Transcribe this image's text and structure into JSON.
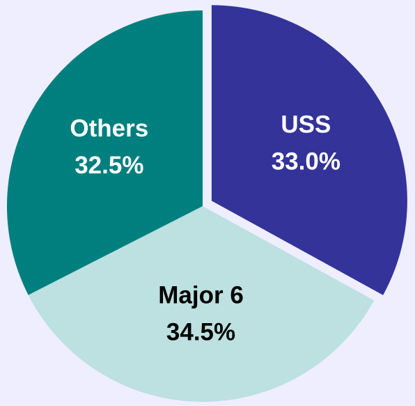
{
  "chart_data": {
    "type": "pie",
    "categories": [
      "USS",
      "Major 6",
      "Others"
    ],
    "values": [
      33.0,
      34.5,
      32.5
    ],
    "value_labels": [
      "33.0%",
      "34.5%",
      "32.5%"
    ],
    "colors": [
      "#333399",
      "#bde0e0",
      "#007f7f"
    ],
    "exploded": [
      true,
      false,
      false
    ]
  }
}
